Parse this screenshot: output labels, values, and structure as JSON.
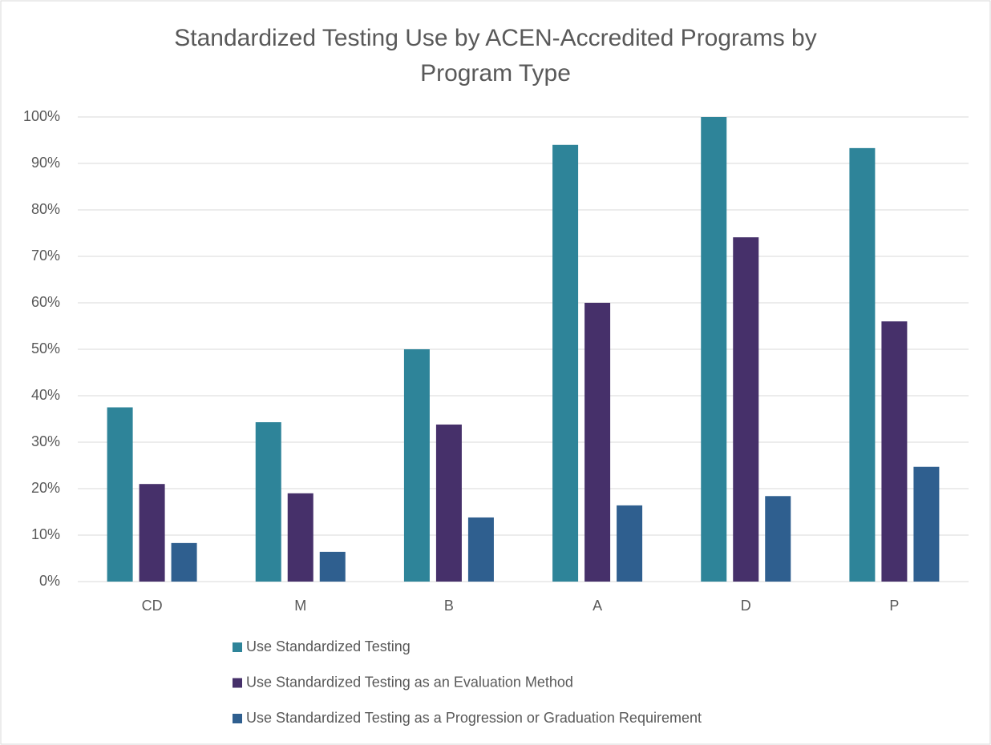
{
  "chart_data": {
    "type": "bar",
    "title": "Standardized Testing Use by ACEN-Accredited Programs by Program Type",
    "categories": [
      "CD",
      "M",
      "B",
      "A",
      "D",
      "P"
    ],
    "series": [
      {
        "name": "Use Standardized Testing",
        "color": "#2e8499",
        "values": [
          37.5,
          34.3,
          50,
          94,
          100,
          93.3
        ]
      },
      {
        "name": "Use Standardized Testing as an Evaluation Method",
        "color": "#46306a",
        "values": [
          21,
          19,
          33.8,
          60,
          74.1,
          56
        ]
      },
      {
        "name": "Use Standardized Testing as a Progression or Graduation Requirement",
        "color": "#2f5f8f",
        "values": [
          8.3,
          6.4,
          13.8,
          16.4,
          18.4,
          24.7
        ]
      }
    ],
    "ylim": [
      0,
      100
    ],
    "yticks": [
      {
        "value": 0,
        "label": "0%"
      },
      {
        "value": 10,
        "label": "10%"
      },
      {
        "value": 20,
        "label": "20%"
      },
      {
        "value": 30,
        "label": "30%"
      },
      {
        "value": 40,
        "label": "40%"
      },
      {
        "value": 50,
        "label": "50%"
      },
      {
        "value": 60,
        "label": "60%"
      },
      {
        "value": 70,
        "label": "70%"
      },
      {
        "value": 80,
        "label": "80%"
      },
      {
        "value": 90,
        "label": "90%"
      },
      {
        "value": 100,
        "label": "100%"
      }
    ],
    "grid": true,
    "legend": "bottom"
  }
}
